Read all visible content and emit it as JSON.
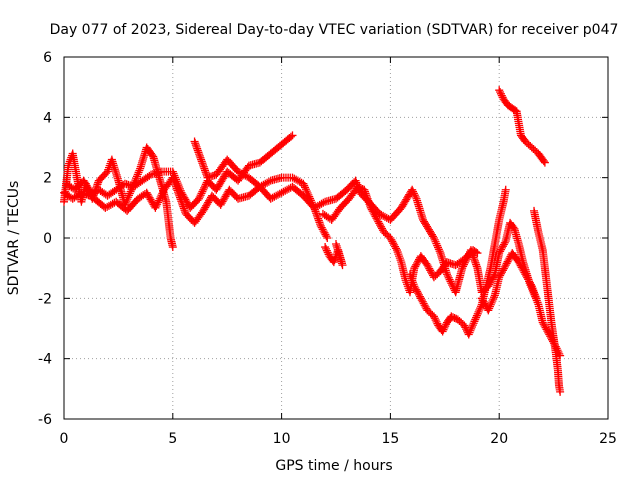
{
  "chart_data": {
    "type": "scatter",
    "title": "Day 077 of 2023, Sidereal Day-to-day VTEC variation (SDTVAR) for receiver p047",
    "xlabel": "GPS time / hours",
    "ylabel": "SDTVAR / TECUs",
    "xlim": [
      0,
      25
    ],
    "ylim": [
      -6,
      6
    ],
    "xticks": [
      0,
      5,
      10,
      15,
      20,
      25
    ],
    "yticks": [
      -6,
      -4,
      -2,
      0,
      2,
      4,
      6
    ],
    "xtick_labels": [
      "0",
      "5",
      "10",
      "15",
      "20",
      "25"
    ],
    "ytick_labels": [
      "-6",
      "-4",
      "-2",
      "0",
      "2",
      "4",
      "6"
    ],
    "grid": true,
    "marker": "+",
    "series": [
      {
        "name": "SDTVAR",
        "color": "#ff0000",
        "segments": [
          [
            [
              0.0,
              1.2
            ],
            [
              0.2,
              2.4
            ],
            [
              0.4,
              2.8
            ],
            [
              0.6,
              2.0
            ],
            [
              0.8,
              1.2
            ],
            [
              1.0,
              1.8
            ],
            [
              1.3,
              1.3
            ],
            [
              1.6,
              1.9
            ],
            [
              2.0,
              2.2
            ],
            [
              2.2,
              2.6
            ],
            [
              2.5,
              1.9
            ],
            [
              2.8,
              1.1
            ],
            [
              3.1,
              1.6
            ],
            [
              3.5,
              2.3
            ],
            [
              3.8,
              3.0
            ],
            [
              4.1,
              2.7
            ],
            [
              4.5,
              1.7
            ],
            [
              4.7,
              1.2
            ],
            [
              4.8,
              0.6
            ],
            [
              4.9,
              0.0
            ],
            [
              5.0,
              -0.3
            ]
          ],
          [
            [
              0.0,
              1.5
            ],
            [
              0.4,
              1.3
            ],
            [
              0.8,
              1.5
            ],
            [
              1.2,
              1.4
            ],
            [
              1.6,
              1.6
            ],
            [
              2.0,
              1.4
            ],
            [
              2.4,
              1.6
            ],
            [
              2.8,
              1.8
            ],
            [
              3.2,
              1.7
            ],
            [
              3.6,
              1.9
            ],
            [
              4.0,
              2.1
            ],
            [
              4.5,
              2.2
            ],
            [
              5.0,
              2.2
            ],
            [
              5.4,
              1.5
            ],
            [
              5.8,
              1.0
            ],
            [
              6.2,
              1.3
            ],
            [
              6.6,
              1.9
            ],
            [
              7.0,
              1.6
            ],
            [
              7.5,
              2.2
            ],
            [
              8.0,
              1.9
            ],
            [
              8.5,
              2.4
            ],
            [
              9.0,
              2.5
            ],
            [
              9.5,
              2.8
            ],
            [
              10.0,
              3.1
            ],
            [
              10.5,
              3.4
            ]
          ],
          [
            [
              0.1,
              1.8
            ],
            [
              0.5,
              1.6
            ],
            [
              0.9,
              1.9
            ],
            [
              1.4,
              1.3
            ],
            [
              1.9,
              1.0
            ],
            [
              2.4,
              1.2
            ],
            [
              2.9,
              0.9
            ],
            [
              3.4,
              1.3
            ],
            [
              3.8,
              1.5
            ],
            [
              4.2,
              1.0
            ],
            [
              4.6,
              1.6
            ],
            [
              5.0,
              2.0
            ],
            [
              5.3,
              1.4
            ],
            [
              5.6,
              0.8
            ],
            [
              6.0,
              0.5
            ],
            [
              6.4,
              0.9
            ],
            [
              6.8,
              1.4
            ],
            [
              7.2,
              1.1
            ],
            [
              7.6,
              1.6
            ],
            [
              8.0,
              1.3
            ],
            [
              8.5,
              1.4
            ],
            [
              9.0,
              1.7
            ],
            [
              9.5,
              1.3
            ],
            [
              10.0,
              1.5
            ],
            [
              10.5,
              1.7
            ],
            [
              11.0,
              1.4
            ],
            [
              11.5,
              1.0
            ],
            [
              12.0,
              1.2
            ],
            [
              12.5,
              1.3
            ],
            [
              13.0,
              1.6
            ],
            [
              13.4,
              1.9
            ],
            [
              13.6,
              1.5
            ],
            [
              14.0,
              1.2
            ],
            [
              14.5,
              0.8
            ],
            [
              15.0,
              0.6
            ],
            [
              15.5,
              1.0
            ],
            [
              16.0,
              1.6
            ],
            [
              16.2,
              1.3
            ],
            [
              16.5,
              0.6
            ],
            [
              17.0,
              0.0
            ],
            [
              17.3,
              -0.5
            ],
            [
              17.6,
              -1.2
            ],
            [
              18.0,
              -1.8
            ],
            [
              18.3,
              -1.0
            ],
            [
              18.7,
              -0.4
            ],
            [
              19.0,
              -1.0
            ],
            [
              19.2,
              -1.8
            ],
            [
              19.5,
              -1.6
            ],
            [
              19.8,
              -1.2
            ],
            [
              20.0,
              -0.5
            ],
            [
              20.3,
              -0.1
            ],
            [
              20.5,
              0.5
            ],
            [
              20.7,
              0.3
            ],
            [
              20.9,
              -0.2
            ],
            [
              21.1,
              -0.8
            ],
            [
              21.4,
              -1.5
            ],
            [
              21.8,
              -2.2
            ],
            [
              22.0,
              -2.8
            ],
            [
              22.3,
              -3.2
            ],
            [
              22.6,
              -3.6
            ],
            [
              22.8,
              -3.9
            ]
          ],
          [
            [
              6.0,
              3.2
            ],
            [
              6.3,
              2.6
            ],
            [
              6.6,
              2.0
            ],
            [
              7.0,
              2.1
            ],
            [
              7.5,
              2.6
            ],
            [
              8.0,
              2.2
            ],
            [
              8.5,
              2.0
            ],
            [
              9.0,
              1.7
            ],
            [
              9.5,
              1.9
            ],
            [
              10.0,
              2.0
            ],
            [
              10.5,
              2.0
            ],
            [
              11.0,
              1.8
            ],
            [
              11.5,
              1.0
            ],
            [
              11.8,
              0.4
            ],
            [
              12.1,
              0.0
            ]
          ],
          [
            [
              12.0,
              -0.3
            ],
            [
              12.2,
              -0.6
            ],
            [
              12.4,
              -0.8
            ],
            [
              12.6,
              -0.4
            ],
            [
              12.8,
              -0.9
            ],
            [
              12.5,
              -0.2
            ]
          ],
          [
            [
              11.9,
              0.8
            ],
            [
              12.3,
              0.6
            ],
            [
              12.7,
              1.0
            ],
            [
              13.1,
              1.3
            ],
            [
              13.5,
              1.7
            ],
            [
              13.8,
              1.6
            ],
            [
              14.1,
              1.0
            ],
            [
              14.4,
              0.6
            ],
            [
              14.7,
              0.2
            ],
            [
              15.0,
              0.0
            ],
            [
              15.3,
              -0.4
            ],
            [
              15.5,
              -0.8
            ],
            [
              15.7,
              -1.4
            ],
            [
              15.9,
              -1.8
            ],
            [
              16.1,
              -1.0
            ],
            [
              16.4,
              -0.6
            ],
            [
              16.7,
              -0.9
            ],
            [
              17.0,
              -1.3
            ],
            [
              17.3,
              -1.1
            ],
            [
              17.6,
              -0.8
            ],
            [
              18.0,
              -0.9
            ],
            [
              18.4,
              -0.7
            ],
            [
              18.8,
              -0.4
            ],
            [
              19.0,
              -0.5
            ]
          ],
          [
            [
              15.9,
              -1.2
            ],
            [
              16.1,
              -1.6
            ],
            [
              16.4,
              -2.0
            ],
            [
              16.7,
              -2.4
            ],
            [
              17.0,
              -2.6
            ],
            [
              17.2,
              -2.9
            ],
            [
              17.4,
              -3.1
            ],
            [
              17.6,
              -2.8
            ],
            [
              17.8,
              -2.6
            ],
            [
              18.1,
              -2.7
            ],
            [
              18.4,
              -2.9
            ],
            [
              18.6,
              -3.2
            ],
            [
              18.9,
              -2.7
            ],
            [
              19.2,
              -2.2
            ],
            [
              19.4,
              -1.6
            ],
            [
              19.6,
              -1.0
            ],
            [
              19.8,
              -0.2
            ],
            [
              20.0,
              0.6
            ],
            [
              20.2,
              1.2
            ],
            [
              20.3,
              1.6
            ]
          ],
          [
            [
              19.2,
              -2.0
            ],
            [
              19.5,
              -2.4
            ],
            [
              19.8,
              -1.9
            ],
            [
              20.0,
              -1.3
            ],
            [
              20.3,
              -0.9
            ],
            [
              20.6,
              -0.5
            ],
            [
              20.9,
              -0.8
            ],
            [
              21.2,
              -1.2
            ],
            [
              21.5,
              -1.6
            ],
            [
              21.7,
              -2.0
            ]
          ],
          [
            [
              21.6,
              0.9
            ],
            [
              21.8,
              0.2
            ],
            [
              22.0,
              -0.4
            ],
            [
              22.1,
              -1.0
            ],
            [
              22.2,
              -1.6
            ],
            [
              22.3,
              -2.2
            ],
            [
              22.4,
              -2.8
            ],
            [
              22.5,
              -3.3
            ],
            [
              22.6,
              -3.8
            ],
            [
              22.7,
              -4.4
            ],
            [
              22.75,
              -4.9
            ],
            [
              22.8,
              -5.1
            ]
          ],
          [
            [
              20.0,
              4.9
            ],
            [
              20.2,
              4.6
            ],
            [
              20.4,
              4.4
            ],
            [
              20.6,
              4.3
            ],
            [
              20.8,
              4.2
            ],
            [
              20.9,
              3.8
            ],
            [
              21.0,
              3.4
            ],
            [
              21.2,
              3.2
            ],
            [
              21.5,
              3.0
            ],
            [
              21.8,
              2.8
            ],
            [
              22.0,
              2.6
            ],
            [
              22.1,
              2.5
            ]
          ]
        ]
      }
    ]
  }
}
